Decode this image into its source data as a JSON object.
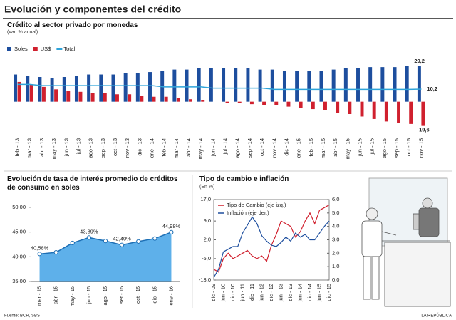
{
  "page_title": "Evolución y componentes del crédito",
  "chart_data": [
    {
      "type": "bar",
      "title": "Crédito al sector privado por monedas",
      "subtitle": "(var. % anual)",
      "categories": [
        "feb - 13",
        "mar - 13",
        "abr - 13",
        "may - 13",
        "jun - 13",
        "jul - 13",
        "ago - 13",
        "sep - 13",
        "oct - 13",
        "nov - 13",
        "dic - 13",
        "ene - 14",
        "feb - 14",
        "mar - 14",
        "abr - 14",
        "may - 14",
        "jun - 14",
        "jul - 14",
        "ago - 14",
        "sep - 14",
        "oct - 14",
        "nov - 14",
        "dic - 14",
        "ene - 15",
        "feb - 15",
        "mar - 15",
        "abr - 15",
        "may - 15",
        "jun - 15",
        "jul - 15",
        "ago - 15",
        "sep - 15",
        "oct - 15",
        "nov - 15"
      ],
      "ylim": [
        -25,
        35
      ],
      "series": [
        {
          "name": "Soles",
          "color": "#1d4e9e",
          "values": [
            22,
            21,
            20,
            19,
            20,
            21,
            22,
            22,
            22,
            23,
            23,
            24,
            25,
            26,
            26,
            27,
            27,
            27,
            27,
            27,
            26,
            26,
            25,
            25,
            25,
            25,
            26,
            27,
            27,
            28,
            28,
            28,
            29,
            29.2
          ],
          "value_labels": [
            null,
            null,
            null,
            null,
            null,
            null,
            null,
            null,
            null,
            null,
            null,
            null,
            null,
            null,
            null,
            null,
            null,
            null,
            null,
            null,
            null,
            null,
            null,
            null,
            null,
            null,
            null,
            null,
            null,
            null,
            null,
            null,
            null,
            "29,2"
          ]
        },
        {
          "name": "US$",
          "color": "#d0202e",
          "values": [
            16,
            14,
            12,
            10,
            9,
            8,
            7,
            7,
            6,
            6,
            5,
            4,
            4,
            3,
            2,
            1,
            0,
            -1,
            -1,
            -2,
            -3,
            -3,
            -4,
            -5,
            -6,
            -7,
            -9,
            -10,
            -12,
            -14,
            -16,
            -17,
            -18,
            -19.6
          ],
          "value_labels": [
            null,
            null,
            null,
            null,
            null,
            null,
            null,
            null,
            null,
            null,
            null,
            null,
            null,
            null,
            null,
            null,
            null,
            null,
            null,
            null,
            null,
            null,
            null,
            null,
            null,
            null,
            null,
            null,
            null,
            null,
            null,
            null,
            null,
            "-19,6"
          ]
        },
        {
          "name": "Total",
          "type": "line",
          "color": "#2fa4d9",
          "values": [
            14,
            14,
            13,
            13,
            13,
            13,
            13,
            13,
            13,
            13,
            13,
            13,
            12,
            12,
            12,
            12,
            11,
            11,
            11,
            11,
            11,
            10,
            10,
            10,
            10,
            10,
            10,
            10,
            10,
            10,
            10,
            10,
            10,
            10.2
          ],
          "value_labels": [
            null,
            null,
            null,
            null,
            null,
            null,
            null,
            null,
            null,
            null,
            null,
            null,
            null,
            null,
            null,
            null,
            null,
            null,
            null,
            null,
            null,
            null,
            null,
            null,
            null,
            null,
            null,
            null,
            null,
            null,
            null,
            null,
            null,
            "10,2"
          ]
        }
      ]
    },
    {
      "type": "area",
      "title": "Evolución de tasa de interés promedio de créditos de consumo en soles",
      "categories": [
        "mar - 15",
        "abr - 15",
        "may - 15",
        "jun - 15",
        "ago - 15",
        "set - 15",
        "oct - 15",
        "dic - 15",
        "ene - 16"
      ],
      "values": [
        40.58,
        40.9,
        42.8,
        43.89,
        43.2,
        42.4,
        43.1,
        43.7,
        44.98
      ],
      "value_labels": [
        "40,58%",
        null,
        null,
        "43,89%",
        null,
        "42,40%",
        null,
        null,
        "44,98%"
      ],
      "color": "#5eb0ea",
      "ylim": [
        35,
        50
      ],
      "yticks": [
        {
          "value": 35,
          "label": "35,00"
        },
        {
          "value": 40,
          "label": "40,00"
        },
        {
          "value": 45,
          "label": "45,00"
        },
        {
          "value": 50,
          "label": "50,00"
        }
      ]
    },
    {
      "type": "line",
      "title": "Tipo de cambio e inflación",
      "subtitle": "(En %)",
      "categories": [
        "dic - 09",
        null,
        "jun - 10",
        null,
        "dic - 10",
        null,
        "jun - 11",
        null,
        "dic - 11",
        null,
        "jun - 12",
        null,
        "dic - 12",
        null,
        "jun - 13",
        null,
        "dic - 13",
        null,
        "jun - 14",
        null,
        "dic - 14",
        null,
        "jun - 15",
        null,
        "dic - 15"
      ],
      "series": [
        {
          "name": "Tipo de Cambio (eje izq.)",
          "color": "#d0202e",
          "values": [
            -9,
            -10,
            -5,
            -3,
            -5,
            -4,
            -3,
            -2,
            -4,
            -5,
            -4,
            -6,
            0,
            4,
            9,
            8,
            7,
            3,
            5,
            9,
            12,
            8,
            13,
            14,
            15
          ]
        },
        {
          "name": "Inflación (eje der.)",
          "color": "#1d4e9e",
          "axis": "y2",
          "values": [
            0.2,
            0.8,
            2.1,
            2.3,
            2.5,
            2.5,
            3.5,
            4.1,
            4.7,
            4.2,
            3.3,
            2.9,
            2.6,
            2.5,
            2.8,
            3.2,
            2.9,
            3.5,
            3.2,
            3.4,
            3.0,
            3.0,
            3.5,
            4.0,
            4.4
          ]
        }
      ],
      "ylim": [
        -13,
        17
      ],
      "yticks": [
        {
          "value": -13,
          "label": "-13,0"
        },
        {
          "value": -5,
          "label": "-5,0"
        },
        {
          "value": 2,
          "label": "2,0"
        },
        {
          "value": 9,
          "label": "9,0"
        },
        {
          "value": 17,
          "label": "17,0"
        }
      ],
      "y2lim": [
        0,
        6
      ],
      "y2ticks": [
        {
          "value": 0,
          "label": "0,0"
        },
        {
          "value": 1,
          "label": "1,0"
        },
        {
          "value": 2,
          "label": "2,0"
        },
        {
          "value": 3,
          "label": "3,0"
        },
        {
          "value": 4,
          "label": "4,0"
        },
        {
          "value": 5,
          "label": "5,0"
        },
        {
          "value": 6,
          "label": "6,0"
        }
      ]
    }
  ],
  "source": "Fuente: BCR, SBS",
  "brand": "LA REPÚBLICA"
}
